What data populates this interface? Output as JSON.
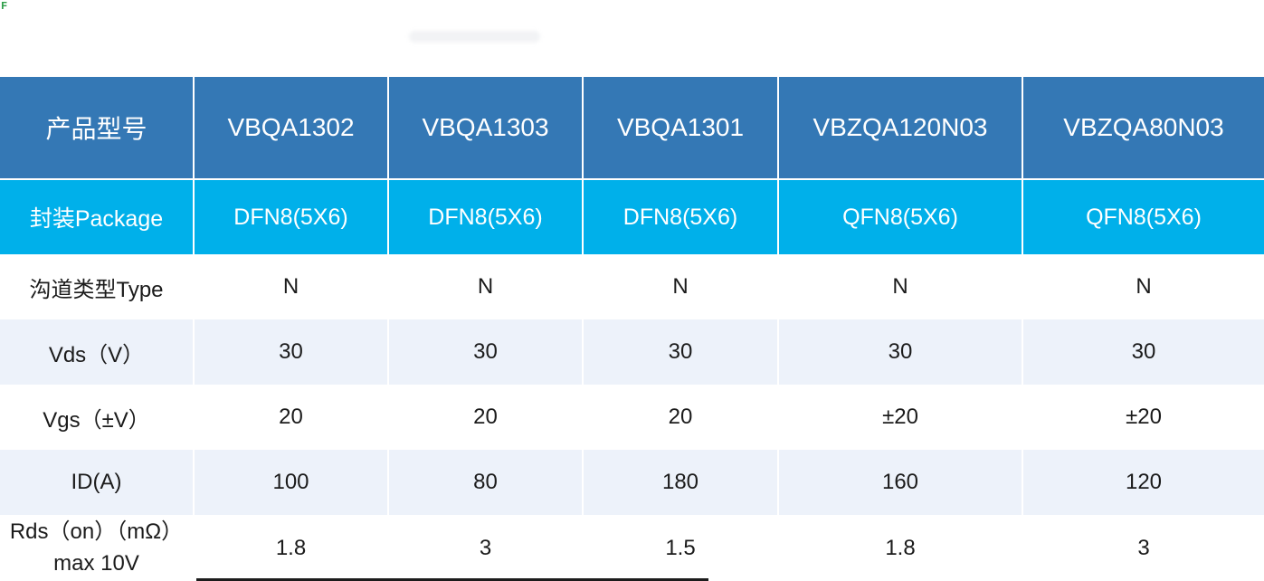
{
  "page": {
    "artifact_glyph": "F"
  },
  "table": {
    "header": {
      "row_label": "产品型号",
      "models": [
        "VBQA1302",
        "VBQA1303",
        "VBQA1301",
        "VBZQA120N03",
        "VBZQA80N03"
      ]
    },
    "rows": [
      {
        "label": "封装Package",
        "values": [
          "DFN8(5X6)",
          "DFN8(5X6)",
          "DFN8(5X6)",
          "QFN8(5X6)",
          "QFN8(5X6)"
        ]
      },
      {
        "label": "沟道类型Type",
        "values": [
          "N",
          "N",
          "N",
          "N",
          "N"
        ]
      },
      {
        "label": "Vds（V）",
        "values": [
          "30",
          "30",
          "30",
          "30",
          "30"
        ]
      },
      {
        "label": "Vgs（±V）",
        "values": [
          "20",
          "20",
          "20",
          "±20",
          "±20"
        ]
      },
      {
        "label": "ID(A)",
        "values": [
          "100",
          "80",
          "180",
          "160",
          "120"
        ]
      },
      {
        "label": "Rds（on）（mΩ）max 10V",
        "values": [
          "1.8",
          "3",
          "1.5",
          "1.8",
          "3"
        ]
      }
    ],
    "colors": {
      "header_bg": "#3478b5",
      "package_row_bg": "#00b0ea",
      "alt_row_bg": "#edf2fa",
      "header_text": "#ffffff",
      "body_text": "#1b1b1b"
    }
  }
}
